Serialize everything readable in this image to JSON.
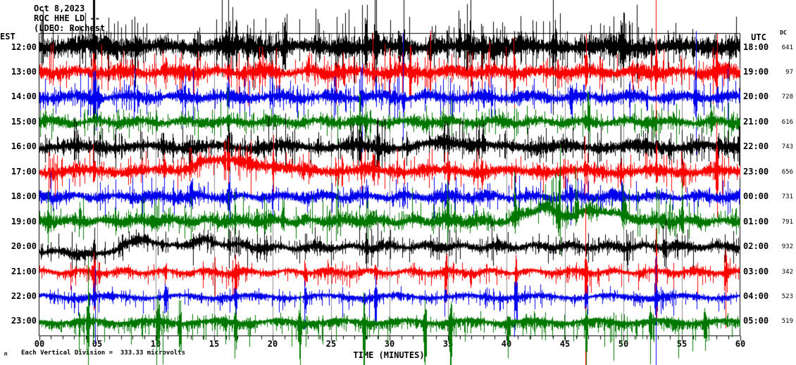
{
  "header": {
    "date_line": "Oct 8,2023",
    "station_line": "ROC HHE LD --",
    "network_line": "(LDEO: Rochest"
  },
  "axes": {
    "left_title": "EST",
    "right_title": "UTC",
    "dc_title": "DC",
    "x_title": "TIME (MINUTES)",
    "x_labels": [
      "00",
      "05",
      "10",
      "15",
      "20",
      "25",
      "30",
      "35",
      "40",
      "45",
      "50",
      "55",
      "60"
    ]
  },
  "footer": {
    "mark": "M",
    "scale_note": "Each Vertical Division =  333.33 microvolts"
  },
  "colors": {
    "background": "#FFFFFF",
    "frame": "#000000",
    "grid": "#8C8C8C",
    "text": "#000000",
    "trace_cycle": [
      "#000000",
      "#FF0000",
      "#0000EE",
      "#007700"
    ]
  },
  "chart_data": {
    "type": "line",
    "subtype": "helicorder-seismogram",
    "title": "ROC HHE LD -- (LDEO) Oct 8,2023",
    "xlabel": "TIME (MINUTES)",
    "x_range": [
      0,
      60
    ],
    "x_tick_step_minutes": 5,
    "minor_tick_minutes": 1,
    "vertical_division_microvolts": 333.33,
    "rows": [
      {
        "est": "12:00",
        "utc": "18:00",
        "dc": 641,
        "color": "#000000",
        "amp": 17,
        "sf": 2.5,
        "bias": -0.2,
        "spikes": [
          4.7,
          12.2,
          16.2,
          21,
          28,
          33.5,
          38,
          44,
          50,
          56
        ],
        "drift": [
          [
            0,
            0
          ],
          [
            60,
            0
          ]
        ]
      },
      {
        "est": "13:00",
        "utc": "19:00",
        "dc": 97,
        "color": "#FF0000",
        "amp": 13,
        "sf": 3,
        "bias": 0,
        "spikes": [
          4.7,
          10.8,
          16.2,
          23,
          28.6,
          33.5,
          40.7,
          46.8,
          52.8,
          58
        ],
        "drift": [
          [
            0,
            0
          ],
          [
            60,
            0
          ]
        ]
      },
      {
        "est": "14:00",
        "utc": "20:00",
        "dc": 728,
        "color": "#0000EE",
        "amp": 11,
        "sf": 3,
        "bias": 0,
        "spikes": [
          4.7,
          16.2,
          27.6,
          31.2,
          45.5,
          56.2
        ],
        "drift": [
          [
            0,
            0
          ],
          [
            60,
            0
          ]
        ]
      },
      {
        "est": "15:00",
        "utc": "21:00",
        "dc": 616,
        "color": "#007700",
        "amp": 10,
        "sf": 3,
        "bias": 0,
        "spikes": [
          16.2,
          28,
          47,
          57.5
        ],
        "drift": [
          [
            0,
            0
          ],
          [
            60,
            0
          ]
        ]
      },
      {
        "est": "16:00",
        "utc": "22:00",
        "dc": 743,
        "color": "#000000",
        "amp": 12,
        "sf": 3,
        "bias": 0,
        "spikes": [
          16.2,
          27.5,
          29,
          38,
          52,
          54
        ],
        "drift": [
          [
            0,
            0
          ],
          [
            32,
            0
          ],
          [
            35,
            -8
          ],
          [
            39,
            0
          ],
          [
            60,
            0
          ]
        ]
      },
      {
        "est": "17:00",
        "utc": "23:00",
        "dc": 656,
        "color": "#FF0000",
        "amp": 11,
        "sf": 3,
        "bias": 0,
        "spikes": [
          4.7,
          16.2,
          20,
          28.6,
          35,
          46.8,
          58
        ],
        "drift": [
          [
            0,
            0
          ],
          [
            12,
            -2
          ],
          [
            14,
            -16
          ],
          [
            18,
            -14
          ],
          [
            22,
            -2
          ],
          [
            60,
            0
          ]
        ]
      },
      {
        "est": "18:00",
        "utc": "00:00",
        "dc": 731,
        "color": "#0000EE",
        "amp": 10,
        "sf": 3,
        "bias": 0,
        "spikes": [
          13,
          16.2,
          31.2,
          40.7,
          45.5
        ],
        "drift": [
          [
            0,
            0
          ],
          [
            60,
            0
          ]
        ]
      },
      {
        "est": "19:00",
        "utc": "01:00",
        "dc": 791,
        "color": "#007700",
        "amp": 9.5,
        "sf": 4,
        "bias": -0.6,
        "spikes": [
          35,
          40.7,
          44.5,
          46,
          50,
          55
        ],
        "drift": [
          [
            0,
            0
          ],
          [
            40,
            0
          ],
          [
            43,
            -20
          ],
          [
            45,
            -8
          ],
          [
            48,
            -16
          ],
          [
            52,
            0
          ],
          [
            60,
            0
          ]
        ]
      },
      {
        "est": "20:00",
        "utc": "02:00",
        "dc": 932,
        "color": "#000000",
        "amp": 9,
        "sf": 3.5,
        "bias": 0,
        "spikes": [
          4.7,
          10.5,
          16.2,
          28,
          46.8,
          53.5
        ],
        "drift": [
          [
            0,
            6
          ],
          [
            5,
            12
          ],
          [
            9,
            -12
          ],
          [
            11,
            0
          ],
          [
            14,
            -8
          ],
          [
            19,
            2
          ],
          [
            30,
            0
          ],
          [
            60,
            0
          ]
        ]
      },
      {
        "est": "21:00",
        "utc": "03:00",
        "dc": 342,
        "color": "#FF0000",
        "amp": 6,
        "sf": 6,
        "bias": 0.6,
        "spikes": [
          4.7,
          10.8,
          16.8,
          22.8,
          28.8,
          34.8,
          40.8,
          46.8,
          52.8,
          58.8
        ],
        "drift": [
          [
            0,
            0
          ],
          [
            60,
            0
          ]
        ]
      },
      {
        "est": "22:00",
        "utc": "04:00",
        "dc": 523,
        "color": "#0000EE",
        "amp": 5.5,
        "sf": 6,
        "bias": 0.5,
        "spikes": [
          4.7,
          10.8,
          16.8,
          22.8,
          28.8,
          34.8,
          40.8,
          46.8,
          52.8
        ],
        "drift": [
          [
            0,
            0
          ],
          [
            60,
            0
          ]
        ]
      },
      {
        "est": "23:00",
        "utc": "05:00",
        "dc": 519,
        "color": "#007700",
        "amp": 7,
        "sf": 7,
        "bias": 1.0,
        "spikes": [
          4.2,
          10.2,
          12,
          16.8,
          22.3,
          27.8,
          33,
          35.2,
          40.2,
          46.8,
          52.3,
          57
        ],
        "drift": [
          [
            0,
            0
          ],
          [
            60,
            0
          ]
        ]
      }
    ]
  }
}
